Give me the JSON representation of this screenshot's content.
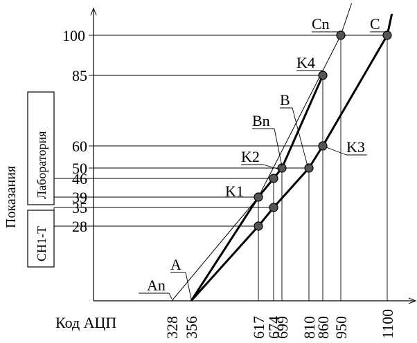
{
  "chart_data": {
    "type": "line",
    "xlabel": "Код АЦП",
    "ylabel": "Показания",
    "x_ticks": [
      {
        "label": "328",
        "value": 328
      },
      {
        "label": "356",
        "value": 356
      },
      {
        "label": "617",
        "value": 617
      },
      {
        "label": "674",
        "value": 674
      },
      {
        "label": "699",
        "value": 699
      },
      {
        "label": "810",
        "value": 810
      },
      {
        "label": "860",
        "value": 860
      },
      {
        "label": "950",
        "value": 950
      },
      {
        "label": "1100",
        "value": 1100
      }
    ],
    "y_ticks": [
      {
        "label": "28",
        "value": 28
      },
      {
        "label": "35",
        "value": 35
      },
      {
        "label": "39",
        "value": 39
      },
      {
        "label": "46",
        "value": 46
      },
      {
        "label": "50",
        "value": 50
      },
      {
        "label": "60",
        "value": 60
      },
      {
        "label": "85",
        "value": 85
      },
      {
        "label": "100",
        "value": 100
      }
    ],
    "boxes": {
      "lab": "Лаборатория",
      "sn": "СН1-Т"
    },
    "lines": {
      "thin": [
        [
          328,
          0
        ],
        [
          617,
          39
        ],
        [
          950,
          100
        ],
        [
          985,
          112
        ]
      ],
      "curve_n": [
        [
          356,
          0
        ],
        [
          617,
          39
        ],
        [
          674,
          46
        ],
        [
          699,
          50
        ],
        [
          860,
          85
        ]
      ],
      "curve_main": [
        [
          356,
          0
        ],
        [
          617,
          28
        ],
        [
          674,
          35
        ],
        [
          810,
          50
        ],
        [
          860,
          60
        ],
        [
          1100,
          100
        ],
        [
          1115,
          108
        ]
      ]
    },
    "points": [
      {
        "x": 617,
        "y": 39,
        "label": "K1"
      },
      {
        "x": 674,
        "y": 46
      },
      {
        "x": 699,
        "y": 50,
        "label": "K2"
      },
      {
        "x": 860,
        "y": 85,
        "label": "K4"
      },
      {
        "x": 950,
        "y": 100
      },
      {
        "x": 617,
        "y": 28
      },
      {
        "x": 674,
        "y": 35
      },
      {
        "x": 810,
        "y": 50
      },
      {
        "x": 860,
        "y": 60,
        "label": "K3"
      },
      {
        "x": 1100,
        "y": 100
      }
    ],
    "labels": {
      "C": "C",
      "Cn": "Cn",
      "B": "B",
      "Bn": "Bn",
      "A": "A",
      "An": "An"
    }
  }
}
